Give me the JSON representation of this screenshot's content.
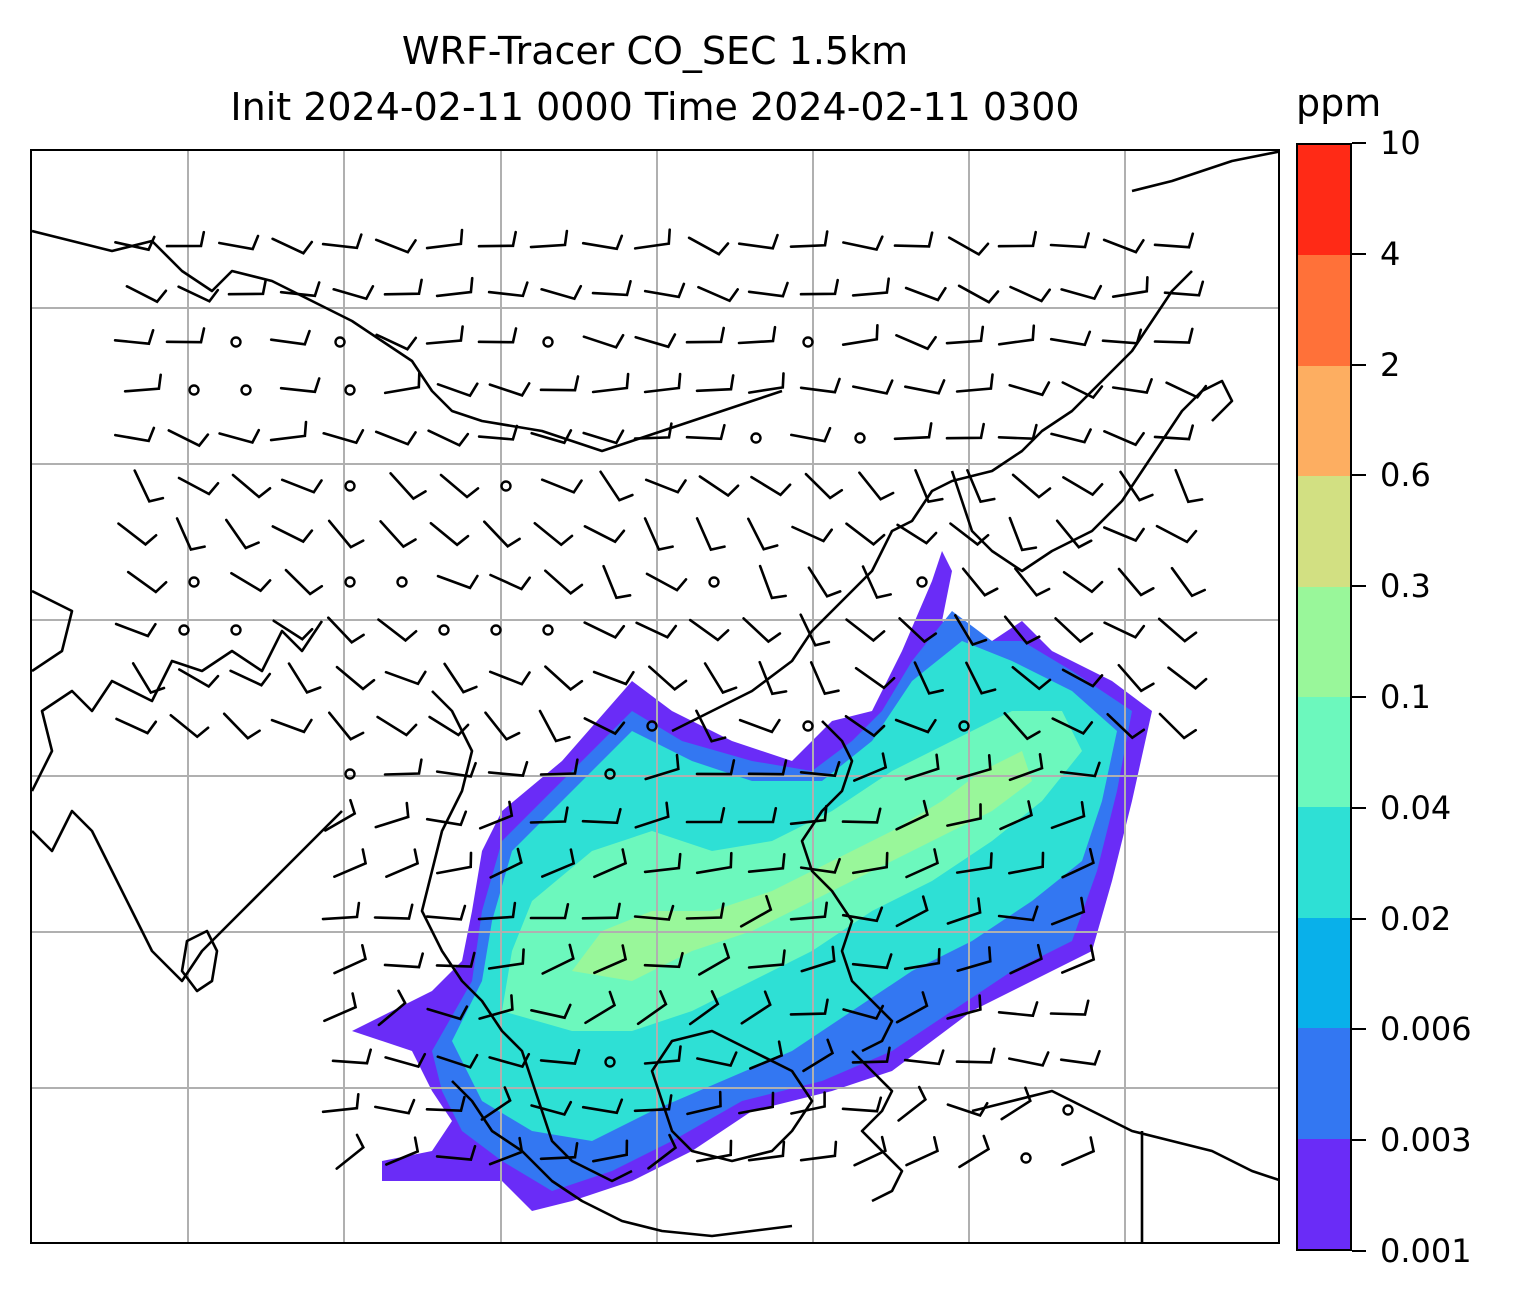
{
  "title": {
    "line1": "WRF-Tracer CO_SEC 1.5km",
    "line2": "Init 2024-02-11 0000 Time 2024-02-11 0300"
  },
  "colorbar": {
    "unit": "ppm",
    "tick_labels": [
      "0.001",
      "0.003",
      "0.006",
      "0.02",
      "0.04",
      "0.1",
      "0.3",
      "0.6",
      "2",
      "4",
      "10"
    ],
    "colors": [
      "#6a2cf7",
      "#3377f2",
      "#09b0ea",
      "#2ee0d5",
      "#6cf8bd",
      "#99f79a",
      "#d2e082",
      "#fdae61",
      "#ff7139",
      "#ff2a16"
    ]
  },
  "map": {
    "gridlines": true,
    "grid_color": "#b0b0b0",
    "coastline_color": "#000000",
    "wind_barb_color": "#000000",
    "field_colors": {
      "outer": "#6a2cf7",
      "edge": "#3377f2",
      "main": "#2ee0d5",
      "high": "#6cf8bd",
      "peak": "#99f79a"
    }
  }
}
